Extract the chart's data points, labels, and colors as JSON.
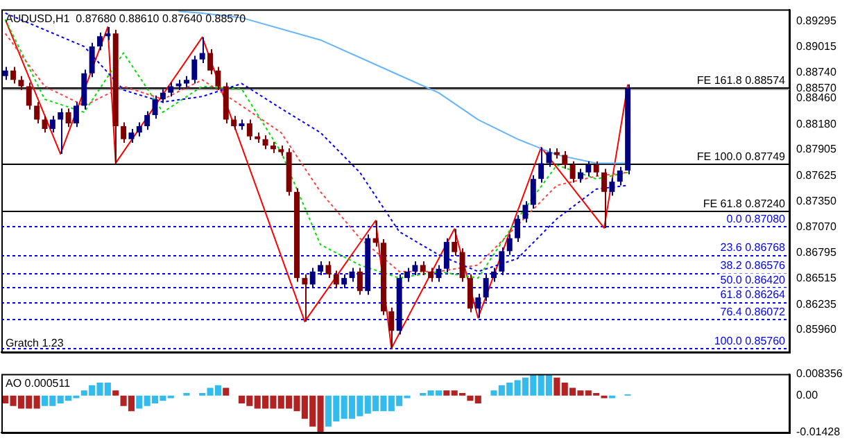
{
  "chart_data": [
    {
      "type": "candlestick",
      "title": "AUDUSD,H1  0.87680 0.88610 0.87640 0.88570",
      "annotations": [
        "Gratch 1.23"
      ],
      "tick_labels": "y",
      "grid": false,
      "legend": false,
      "categories": [
        null,
        null,
        null,
        null,
        null,
        null,
        null,
        null,
        null,
        null,
        null,
        null,
        null,
        null,
        null,
        null,
        null,
        null,
        null,
        null,
        null,
        null,
        null,
        null,
        null,
        null,
        null,
        null,
        null,
        null,
        null,
        null,
        null,
        null,
        null,
        null,
        null,
        null,
        null,
        null,
        null,
        null,
        null,
        null,
        null,
        null,
        null,
        null,
        null,
        null,
        null,
        null,
        null,
        null,
        null,
        null,
        null,
        null,
        null,
        null,
        null,
        null,
        null,
        null,
        null,
        null,
        null,
        null,
        null,
        null,
        null,
        null,
        null,
        null,
        null,
        null,
        null,
        null,
        null,
        null,
        null,
        null,
        null,
        null,
        null,
        null,
        null,
        null,
        null,
        null,
        null,
        null,
        null,
        null,
        null,
        null,
        null,
        null,
        null,
        null
      ],
      "ohlc": [
        [
          0.887,
          0.888,
          0.8866,
          0.8876
        ],
        [
          0.8876,
          0.888,
          0.8862,
          0.8866
        ],
        [
          0.8866,
          0.887,
          0.8855,
          0.8859
        ],
        [
          0.8859,
          0.8863,
          0.8834,
          0.8838
        ],
        [
          0.8838,
          0.8842,
          0.8819,
          0.8823
        ],
        [
          0.8823,
          0.8827,
          0.8809,
          0.8813
        ],
        [
          0.8813,
          0.8827,
          0.8809,
          0.8823
        ],
        [
          0.8823,
          0.8835,
          0.8786,
          0.8831
        ],
        [
          0.8831,
          0.8835,
          0.8815,
          0.8819
        ],
        [
          0.8819,
          0.8842,
          0.8815,
          0.8838
        ],
        [
          0.8838,
          0.8877,
          0.8834,
          0.8873
        ],
        [
          0.8873,
          0.8906,
          0.8869,
          0.8902
        ],
        [
          0.8902,
          0.8917,
          0.8898,
          0.8913
        ],
        [
          0.8913,
          0.8923,
          0.8909,
          0.8916
        ],
        [
          0.8916,
          0.892,
          0.8776,
          0.8816
        ],
        [
          0.8816,
          0.882,
          0.8798,
          0.8802
        ],
        [
          0.8802,
          0.8813,
          0.8798,
          0.8809
        ],
        [
          0.8809,
          0.882,
          0.8805,
          0.8816
        ],
        [
          0.8816,
          0.8832,
          0.8812,
          0.8828
        ],
        [
          0.8828,
          0.8849,
          0.8824,
          0.8845
        ],
        [
          0.8845,
          0.8856,
          0.8841,
          0.8852
        ],
        [
          0.8852,
          0.8863,
          0.8848,
          0.8859
        ],
        [
          0.8859,
          0.8866,
          0.8855,
          0.8862
        ],
        [
          0.8862,
          0.887,
          0.8858,
          0.8866
        ],
        [
          0.8866,
          0.8892,
          0.8862,
          0.8888
        ],
        [
          0.8888,
          0.8912,
          0.8884,
          0.8895
        ],
        [
          0.8895,
          0.8899,
          0.8872,
          0.8876
        ],
        [
          0.8876,
          0.888,
          0.8855,
          0.8859
        ],
        [
          0.8859,
          0.8863,
          0.8819,
          0.8823
        ],
        [
          0.8823,
          0.8827,
          0.8812,
          0.8816
        ],
        [
          0.8816,
          0.8823,
          0.8812,
          0.8819
        ],
        [
          0.8819,
          0.8823,
          0.8801,
          0.8805
        ],
        [
          0.8805,
          0.8809,
          0.8798,
          0.8802
        ],
        [
          0.8802,
          0.8806,
          0.8791,
          0.8795
        ],
        [
          0.8795,
          0.8799,
          0.8787,
          0.8791
        ],
        [
          0.8791,
          0.8795,
          0.8784,
          0.8788
        ],
        [
          0.8788,
          0.8792,
          0.8741,
          0.8745
        ],
        [
          0.8745,
          0.8749,
          0.8648,
          0.8652
        ],
        [
          0.8652,
          0.8656,
          0.8605,
          0.8645
        ],
        [
          0.8645,
          0.8663,
          0.8641,
          0.8659
        ],
        [
          0.8659,
          0.867,
          0.8655,
          0.8666
        ],
        [
          0.8666,
          0.867,
          0.8652,
          0.8656
        ],
        [
          0.8656,
          0.866,
          0.8641,
          0.8645
        ],
        [
          0.8645,
          0.8656,
          0.8641,
          0.8652
        ],
        [
          0.8652,
          0.8663,
          0.8648,
          0.8659
        ],
        [
          0.8659,
          0.8663,
          0.8634,
          0.8638
        ],
        [
          0.8638,
          0.8699,
          0.8634,
          0.8695
        ],
        [
          0.8695,
          0.8714,
          0.8686,
          0.869
        ],
        [
          0.869,
          0.8694,
          0.8612,
          0.8616
        ],
        [
          0.8616,
          0.862,
          0.8576,
          0.8595
        ],
        [
          0.8595,
          0.8656,
          0.8591,
          0.8652
        ],
        [
          0.8652,
          0.8663,
          0.8648,
          0.8659
        ],
        [
          0.8659,
          0.867,
          0.8655,
          0.8666
        ],
        [
          0.8666,
          0.867,
          0.8655,
          0.8659
        ],
        [
          0.8659,
          0.8663,
          0.8648,
          0.8652
        ],
        [
          0.8652,
          0.8666,
          0.8648,
          0.8662
        ],
        [
          0.8662,
          0.8695,
          0.8658,
          0.8691
        ],
        [
          0.8691,
          0.8705,
          0.8676,
          0.868
        ],
        [
          0.868,
          0.8684,
          0.8648,
          0.8652
        ],
        [
          0.8652,
          0.8656,
          0.8615,
          0.8619
        ],
        [
          0.8619,
          0.8635,
          0.8609,
          0.8631
        ],
        [
          0.8631,
          0.8656,
          0.8627,
          0.8652
        ],
        [
          0.8652,
          0.8663,
          0.8648,
          0.8659
        ],
        [
          0.8659,
          0.8685,
          0.8655,
          0.8681
        ],
        [
          0.8681,
          0.8699,
          0.8677,
          0.8695
        ],
        [
          0.8695,
          0.872,
          0.8691,
          0.8716
        ],
        [
          0.8716,
          0.8735,
          0.8712,
          0.8731
        ],
        [
          0.8731,
          0.8763,
          0.8727,
          0.8759
        ],
        [
          0.8759,
          0.8793,
          0.8755,
          0.8776
        ],
        [
          0.8776,
          0.8792,
          0.8772,
          0.8788
        ],
        [
          0.8788,
          0.8792,
          0.8781,
          0.8785
        ],
        [
          0.8785,
          0.8789,
          0.877,
          0.8774
        ],
        [
          0.8774,
          0.8778,
          0.8755,
          0.8759
        ],
        [
          0.8759,
          0.877,
          0.8755,
          0.8766
        ],
        [
          0.8766,
          0.8778,
          0.8762,
          0.8774
        ],
        [
          0.8774,
          0.8778,
          0.8762,
          0.8766
        ],
        [
          0.8766,
          0.877,
          0.8706,
          0.8745
        ],
        [
          0.8745,
          0.876,
          0.8741,
          0.8756
        ],
        [
          0.8756,
          0.8772,
          0.8752,
          0.8768
        ],
        [
          0.8768,
          0.8861,
          0.8764,
          0.8857
        ],
        null,
        null,
        null,
        null,
        null,
        null,
        null,
        null,
        null,
        null,
        null,
        null,
        null,
        null,
        null,
        null,
        null,
        null,
        null,
        null
      ],
      "colors": [
        "#000080",
        "#800000",
        "#800000",
        "#800000",
        "#800000",
        "#800000",
        "#000080",
        "#000080",
        "#800000",
        "#000080",
        "#000080",
        "#000080",
        "#000080",
        "#000080",
        "#800000",
        "#800000",
        "#000080",
        "#000080",
        "#000080",
        "#000080",
        "#000080",
        "#000080",
        "#000080",
        "#000080",
        "#000080",
        "#000080",
        "#800000",
        "#800000",
        "#800000",
        "#800000",
        "#000080",
        "#800000",
        "#800000",
        "#800000",
        "#800000",
        "#800000",
        "#800000",
        "#800000",
        "#800000",
        "#000080",
        "#000080",
        "#800000",
        "#800000",
        "#000080",
        "#000080",
        "#800000",
        "#000080",
        "#800000",
        "#800000",
        "#800000",
        "#000080",
        "#000080",
        "#000080",
        "#800000",
        "#800000",
        "#000080",
        "#000080",
        "#800000",
        "#800000",
        "#800000",
        "#000080",
        "#000080",
        "#000080",
        "#000080",
        "#000080",
        "#000080",
        "#000080",
        "#000080",
        "#000080",
        "#000080",
        "#800000",
        "#800000",
        "#800000",
        "#000080",
        "#000080",
        "#800000",
        "#800000",
        "#000080",
        "#000080",
        "#000080",
        null,
        null,
        null,
        null,
        null,
        null,
        null,
        null,
        null,
        null,
        null,
        null,
        null,
        null,
        null,
        null,
        null,
        null,
        null,
        null
      ],
      "series": [
        {
          "type": "line",
          "color": "#66b3ff",
          "line_style": "solid",
          "values": [
            null,
            null,
            null,
            null,
            null,
            null,
            null,
            null,
            null,
            null,
            null,
            null,
            null,
            null,
            null,
            null,
            null,
            null,
            null,
            null,
            null,
            null,
            0.894,
            null,
            null,
            0.8938,
            null,
            null,
            null,
            null,
            0.8933,
            null,
            null,
            null,
            null,
            null,
            null,
            null,
            null,
            null,
            0.8909,
            null,
            null,
            null,
            null,
            null,
            null,
            null,
            null,
            null,
            0.8871,
            null,
            null,
            null,
            null,
            0.8852,
            null,
            null,
            null,
            null,
            0.8823,
            null,
            null,
            null,
            null,
            0.8802,
            null,
            null,
            null,
            null,
            0.8785,
            null,
            null,
            null,
            null,
            0.8776,
            null,
            null,
            null,
            0.8776,
            null,
            null,
            null,
            null,
            null,
            null,
            null,
            null,
            null,
            null,
            null,
            null,
            null,
            null,
            null,
            null,
            null,
            null,
            null,
            null
          ]
        },
        {
          "type": "line",
          "color": "#0000ff",
          "line_style": "dotted",
          "values": [
            0.8938,
            null,
            null,
            null,
            null,
            0.892,
            null,
            null,
            null,
            null,
            0.8902,
            null,
            null,
            null,
            null,
            0.8855,
            null,
            null,
            null,
            null,
            0.8842,
            null,
            null,
            null,
            null,
            0.8848,
            null,
            null,
            null,
            null,
            0.8862,
            null,
            null,
            null,
            null,
            0.8835,
            null,
            null,
            null,
            null,
            0.8809,
            null,
            null,
            null,
            null,
            0.8766,
            null,
            null,
            null,
            null,
            0.8702,
            null,
            null,
            null,
            null,
            0.8677,
            null,
            null,
            null,
            null,
            0.8659,
            null,
            null,
            null,
            null,
            0.8673,
            null,
            null,
            null,
            null,
            0.8716,
            null,
            null,
            null,
            null,
            0.8748,
            null,
            null,
            null,
            0.8752,
            null,
            null,
            null,
            null,
            null,
            null,
            null,
            null,
            null,
            null,
            null,
            null,
            null,
            null,
            null,
            null,
            null,
            null,
            null,
            null
          ]
        },
        {
          "type": "line",
          "color": "#ff4040",
          "line_style": "dotted",
          "values": [
            0.8916,
            null,
            null,
            null,
            null,
            0.8859,
            null,
            null,
            null,
            null,
            0.8838,
            null,
            null,
            null,
            null,
            0.8859,
            null,
            null,
            null,
            null,
            0.8845,
            null,
            null,
            null,
            null,
            0.8866,
            null,
            null,
            null,
            null,
            0.8838,
            null,
            null,
            null,
            null,
            0.8809,
            null,
            null,
            null,
            null,
            0.8745,
            null,
            null,
            null,
            null,
            0.8695,
            null,
            null,
            null,
            null,
            0.8659,
            null,
            null,
            null,
            null,
            0.8659,
            null,
            null,
            null,
            null,
            0.8666,
            null,
            null,
            null,
            null,
            0.8709,
            null,
            null,
            null,
            null,
            0.8752,
            null,
            null,
            null,
            null,
            0.8762,
            null,
            null,
            null,
            0.8766,
            null,
            null,
            null,
            null,
            null,
            null,
            null,
            null,
            null,
            null,
            null,
            null,
            null,
            null,
            null,
            null,
            null,
            null,
            null,
            null
          ]
        },
        {
          "type": "line",
          "color": "#00e000",
          "line_style": "dotted",
          "values": [
            0.8931,
            null,
            null,
            null,
            null,
            0.8845,
            null,
            null,
            null,
            null,
            0.8831,
            null,
            null,
            null,
            null,
            0.8895,
            null,
            null,
            null,
            null,
            0.8831,
            null,
            null,
            null,
            null,
            0.8859,
            null,
            null,
            null,
            null,
            0.8856,
            null,
            null,
            null,
            null,
            0.8788,
            null,
            null,
            null,
            null,
            0.8688,
            null,
            null,
            null,
            null,
            0.8666,
            null,
            null,
            null,
            null,
            0.8652,
            null,
            null,
            null,
            null,
            0.8659,
            null,
            null,
            null,
            null,
            0.8652,
            null,
            null,
            null,
            null,
            0.8716,
            null,
            null,
            null,
            null,
            0.8774,
            null,
            null,
            null,
            null,
            0.8759,
            null,
            null,
            null,
            0.8766,
            null,
            null,
            null,
            null,
            null,
            null,
            null,
            null,
            null,
            null,
            null,
            null,
            null,
            null,
            null,
            null,
            null,
            null,
            null,
            null
          ]
        },
        {
          "type": "line",
          "color": "#ff0000",
          "line_style": "solid",
          "values": [
            0.8931,
            null,
            null,
            null,
            null,
            null,
            null,
            0.8786,
            null,
            null,
            null,
            null,
            null,
            0.8923,
            0.8776,
            null,
            null,
            null,
            null,
            null,
            null,
            null,
            null,
            null,
            null,
            0.8912,
            null,
            null,
            null,
            null,
            null,
            null,
            null,
            null,
            null,
            null,
            null,
            null,
            0.8605,
            null,
            null,
            null,
            null,
            null,
            null,
            null,
            null,
            0.8714,
            null,
            0.8576,
            null,
            null,
            null,
            null,
            null,
            null,
            null,
            0.8705,
            null,
            null,
            0.8609,
            null,
            null,
            null,
            null,
            null,
            null,
            null,
            0.8793,
            null,
            null,
            null,
            null,
            null,
            null,
            null,
            0.8706,
            null,
            null,
            0.8861,
            null,
            null,
            null,
            null,
            null,
            null,
            null,
            null,
            null,
            null,
            null,
            null,
            null,
            null,
            null,
            null,
            null,
            null,
            null,
            null
          ]
        }
      ],
      "ylim": [
        0.8572,
        0.8942
      ],
      "yticks": [
        {
          "value": 0.89295,
          "label": "0.89295"
        },
        {
          "value": 0.89015,
          "label": "0.89015"
        },
        {
          "value": 0.8874,
          "label": "0.88740"
        },
        {
          "value": 0.8857,
          "label": "0.88570"
        },
        {
          "value": 0.8846,
          "label": "0.88460"
        },
        {
          "value": 0.8818,
          "label": "0.88180"
        },
        {
          "value": 0.87905,
          "label": "0.87905"
        },
        {
          "value": 0.87625,
          "label": "0.87625"
        },
        {
          "value": 0.8735,
          "label": "0.87350"
        },
        {
          "value": 0.8707,
          "label": "0.87070"
        },
        {
          "value": 0.86795,
          "label": "0.86795"
        },
        {
          "value": 0.86515,
          "label": "0.86515"
        },
        {
          "value": 0.86235,
          "label": "0.86235"
        },
        {
          "value": 0.8596,
          "label": "0.85960"
        }
      ],
      "ref_lines": [
        {
          "axis": "y",
          "value": 0.8857,
          "color": "#a0a0a0",
          "line_style": "solid"
        },
        {
          "axis": "y",
          "value": 0.88574,
          "label": "FE 161.8 0.88574",
          "color": "#000000",
          "line_style": "solid"
        },
        {
          "axis": "y",
          "value": 0.87749,
          "label": "FE 100.0 0.87749",
          "color": "#000000",
          "line_style": "solid"
        },
        {
          "axis": "y",
          "value": 0.8724,
          "label": "FE 61.8 0.87240",
          "color": "#000000",
          "line_style": "solid"
        },
        {
          "axis": "y",
          "value": 0.8708,
          "label": "0.0 0.87080",
          "color": "#0000ff",
          "line_style": "dotted"
        },
        {
          "axis": "y",
          "value": 0.86768,
          "label": "23.6 0.86768",
          "color": "#0000ff",
          "line_style": "dotted"
        },
        {
          "axis": "y",
          "value": 0.86576,
          "label": "38.2 0.86576",
          "color": "#0000ff",
          "line_style": "dotted"
        },
        {
          "axis": "y",
          "value": 0.8642,
          "label": "50.0 0.86420",
          "color": "#0000ff",
          "line_style": "dotted"
        },
        {
          "axis": "y",
          "value": 0.86264,
          "label": "61.8 0.86264",
          "color": "#0000ff",
          "line_style": "dotted"
        },
        {
          "axis": "y",
          "value": 0.86072,
          "label": "76.4 0.86072",
          "color": "#0000ff",
          "line_style": "dotted"
        },
        {
          "axis": "y",
          "value": 0.8576,
          "label": "100.0 0.85760",
          "color": "#0000ff",
          "line_style": "dotted"
        }
      ]
    },
    {
      "type": "bar",
      "title": "AO 0.000511",
      "tick_labels": "y",
      "grid": false,
      "legend": false,
      "categories": [
        null,
        null,
        null,
        null,
        null,
        null,
        null,
        null,
        null,
        null,
        null,
        null,
        null,
        null,
        null,
        null,
        null,
        null,
        null,
        null,
        null,
        null,
        null,
        null,
        null,
        null,
        null,
        null,
        null,
        null,
        null,
        null,
        null,
        null,
        null,
        null,
        null,
        null,
        null,
        null,
        null,
        null,
        null,
        null,
        null,
        null,
        null,
        null,
        null,
        null,
        null,
        null,
        null,
        null,
        null,
        null,
        null,
        null,
        null,
        null,
        null,
        null,
        null,
        null,
        null,
        null,
        null,
        null,
        null,
        null,
        null,
        null,
        null,
        null,
        null,
        null,
        null,
        null,
        null,
        null,
        null,
        null,
        null,
        null,
        null,
        null,
        null,
        null,
        null,
        null,
        null,
        null,
        null,
        null,
        null,
        null,
        null,
        null,
        null,
        null
      ],
      "values": [
        -0.003,
        -0.004,
        -0.005,
        -0.005,
        -0.005,
        -0.004,
        -0.004,
        -0.003,
        -0.002,
        -0.001,
        0.002,
        0.004,
        0.005,
        0.005,
        0.002,
        -0.004,
        -0.006,
        -0.005,
        -0.004,
        -0.003,
        -0.002,
        -0.001,
        0.0,
        0.001,
        0.0,
        0.001,
        0.003,
        0.004,
        0.003,
        0.0,
        -0.003,
        -0.004,
        -0.005,
        -0.005,
        -0.005,
        -0.005,
        -0.005,
        -0.006,
        -0.009,
        -0.012,
        -0.014,
        -0.012,
        -0.01,
        -0.009,
        -0.009,
        -0.008,
        -0.007,
        -0.006,
        -0.006,
        -0.006,
        -0.004,
        -0.001,
        0.0,
        0.001,
        0.002,
        0.002,
        0.002,
        0.002,
        0.001,
        -0.002,
        -0.003,
        0.0,
        0.002,
        0.004,
        0.005,
        0.006,
        0.007,
        0.008,
        0.008,
        0.008,
        0.007,
        0.005,
        0.003,
        0.002,
        0.002,
        0.001,
        -0.001,
        -0.001,
        0.0,
        0.0005,
        null,
        null,
        null,
        null,
        null,
        null,
        null,
        null,
        null,
        null,
        null,
        null,
        null,
        null,
        null,
        null,
        null,
        null,
        null,
        null
      ],
      "colors": [
        "#b22222",
        "#b22222",
        "#b22222",
        "#b22222",
        "#b22222",
        "#33bbee",
        "#33bbee",
        "#33bbee",
        "#33bbee",
        "#33bbee",
        "#33bbee",
        "#33bbee",
        "#33bbee",
        "#33bbee",
        "#b22222",
        "#b22222",
        "#b22222",
        "#33bbee",
        "#33bbee",
        "#33bbee",
        "#33bbee",
        "#33bbee",
        "#33bbee",
        "#33bbee",
        "#b22222",
        "#33bbee",
        "#33bbee",
        "#33bbee",
        "#b22222",
        "#b22222",
        "#b22222",
        "#b22222",
        "#b22222",
        "#b22222",
        "#b22222",
        "#b22222",
        "#b22222",
        "#b22222",
        "#b22222",
        "#b22222",
        "#b22222",
        "#33bbee",
        "#33bbee",
        "#33bbee",
        "#33bbee",
        "#33bbee",
        "#33bbee",
        "#33bbee",
        "#33bbee",
        "#33bbee",
        "#33bbee",
        "#33bbee",
        "#33bbee",
        "#33bbee",
        "#33bbee",
        "#33bbee",
        "#b22222",
        "#b22222",
        "#b22222",
        "#b22222",
        "#b22222",
        "#33bbee",
        "#33bbee",
        "#33bbee",
        "#33bbee",
        "#33bbee",
        "#33bbee",
        "#33bbee",
        "#33bbee",
        "#33bbee",
        "#b22222",
        "#b22222",
        "#b22222",
        "#b22222",
        "#b22222",
        "#b22222",
        "#b22222",
        "#33bbee",
        "#33bbee",
        "#33bbee",
        null,
        null,
        null,
        null,
        null,
        null,
        null,
        null,
        null,
        null,
        null,
        null,
        null,
        null,
        null,
        null,
        null,
        null,
        null,
        null
      ],
      "ylim": [
        -0.01428,
        0.008356
      ],
      "yticks": [
        0.008356,
        {
          "value": 0,
          "label": "0.00"
        },
        -0.01428
      ]
    }
  ]
}
